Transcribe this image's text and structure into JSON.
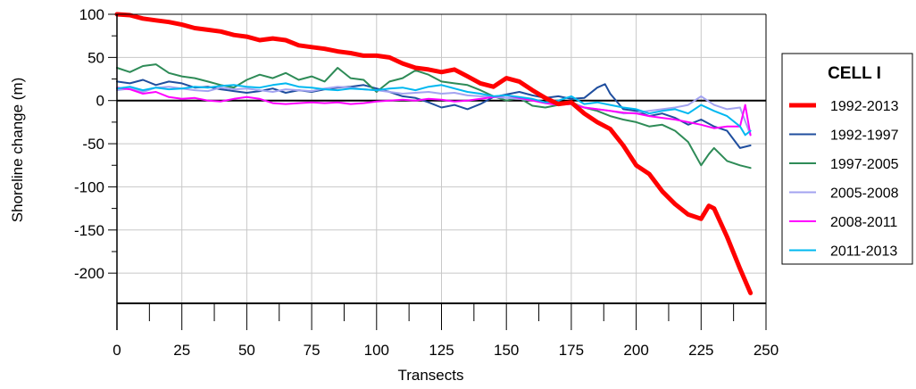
{
  "chart_data": {
    "type": "line",
    "xlabel": "Transects",
    "ylabel": "Shoreline change (m)",
    "xlim": [
      0,
      250
    ],
    "ylim": [
      -235,
      100
    ],
    "xticks": [
      0,
      25,
      50,
      75,
      100,
      125,
      150,
      175,
      200,
      225,
      250
    ],
    "yticks": [
      100,
      50,
      0,
      -50,
      -100,
      -150,
      -200
    ],
    "grid": true,
    "zero_line": true,
    "legend": {
      "title": "CELL I",
      "position": "right"
    },
    "series": [
      {
        "name": "1992-2013",
        "color": "#ff0000",
        "x": [
          0,
          5,
          10,
          15,
          20,
          25,
          30,
          35,
          40,
          45,
          50,
          55,
          60,
          65,
          70,
          75,
          80,
          85,
          90,
          95,
          100,
          105,
          110,
          115,
          120,
          125,
          130,
          135,
          140,
          145,
          150,
          155,
          160,
          165,
          170,
          175,
          180,
          185,
          190,
          195,
          200,
          205,
          210,
          215,
          220,
          225,
          228,
          230,
          235,
          240,
          244
        ],
        "values": [
          100,
          99,
          95,
          93,
          91,
          88,
          84,
          82,
          80,
          76,
          74,
          70,
          72,
          70,
          64,
          62,
          60,
          57,
          55,
          52,
          52,
          50,
          43,
          38,
          36,
          33,
          36,
          28,
          20,
          16,
          26,
          22,
          12,
          3,
          -4,
          -2,
          -15,
          -25,
          -33,
          -52,
          -75,
          -85,
          -105,
          -120,
          -132,
          -137,
          -122,
          -125,
          -158,
          -195,
          -223
        ]
      },
      {
        "name": "1992-1997",
        "color": "#1f4e9e",
        "x": [
          0,
          5,
          10,
          15,
          20,
          25,
          30,
          35,
          40,
          45,
          50,
          55,
          60,
          65,
          70,
          75,
          80,
          85,
          90,
          95,
          100,
          105,
          110,
          115,
          120,
          125,
          130,
          135,
          140,
          145,
          150,
          155,
          160,
          165,
          170,
          175,
          180,
          185,
          188,
          190,
          195,
          200,
          205,
          210,
          215,
          220,
          225,
          230,
          235,
          240,
          244
        ],
        "values": [
          22,
          20,
          24,
          18,
          22,
          20,
          15,
          16,
          13,
          11,
          9,
          11,
          14,
          9,
          12,
          10,
          13,
          15,
          16,
          18,
          14,
          10,
          5,
          3,
          -2,
          -8,
          -5,
          -10,
          -4,
          4,
          7,
          10,
          6,
          3,
          5,
          2,
          3,
          15,
          19,
          8,
          -10,
          -12,
          -18,
          -15,
          -20,
          -28,
          -22,
          -30,
          -35,
          -55,
          -52
        ]
      },
      {
        "name": "1997-2005",
        "color": "#2e8b57",
        "x": [
          0,
          5,
          10,
          15,
          20,
          25,
          30,
          35,
          40,
          45,
          50,
          55,
          60,
          65,
          70,
          75,
          80,
          85,
          90,
          95,
          100,
          105,
          110,
          115,
          120,
          125,
          130,
          135,
          140,
          145,
          150,
          155,
          160,
          165,
          170,
          175,
          180,
          185,
          190,
          195,
          200,
          205,
          210,
          215,
          220,
          225,
          228,
          230,
          235,
          240,
          244
        ],
        "values": [
          38,
          33,
          40,
          42,
          32,
          28,
          26,
          22,
          18,
          15,
          24,
          30,
          26,
          32,
          24,
          28,
          22,
          38,
          26,
          24,
          10,
          22,
          26,
          35,
          30,
          22,
          20,
          18,
          12,
          5,
          0,
          3,
          -6,
          -8,
          -5,
          -2,
          -8,
          -12,
          -18,
          -22,
          -25,
          -30,
          -28,
          -35,
          -48,
          -75,
          -62,
          -55,
          -70,
          -75,
          -78
        ]
      },
      {
        "name": "2005-2008",
        "color": "#a3a3f0",
        "x": [
          0,
          5,
          10,
          15,
          20,
          25,
          30,
          35,
          40,
          45,
          50,
          55,
          60,
          65,
          70,
          75,
          80,
          85,
          90,
          95,
          100,
          105,
          110,
          115,
          120,
          125,
          130,
          135,
          140,
          145,
          150,
          155,
          160,
          165,
          170,
          175,
          180,
          185,
          190,
          195,
          200,
          205,
          210,
          215,
          220,
          225,
          230,
          235,
          240,
          244
        ],
        "values": [
          12,
          14,
          10,
          15,
          16,
          14,
          12,
          11,
          15,
          13,
          14,
          12,
          10,
          13,
          12,
          11,
          14,
          16,
          15,
          13,
          12,
          10,
          8,
          9,
          10,
          8,
          9,
          6,
          5,
          4,
          3,
          2,
          0,
          -2,
          -5,
          -3,
          -8,
          -10,
          -12,
          -15,
          -14,
          -12,
          -10,
          -8,
          -5,
          5,
          -5,
          -10,
          -8,
          -40
        ]
      },
      {
        "name": "2008-2011",
        "color": "#ff00ff",
        "x": [
          0,
          5,
          10,
          15,
          20,
          25,
          30,
          35,
          40,
          45,
          50,
          55,
          60,
          65,
          70,
          75,
          80,
          85,
          90,
          95,
          100,
          105,
          110,
          115,
          120,
          125,
          130,
          135,
          140,
          145,
          150,
          155,
          160,
          165,
          170,
          175,
          180,
          185,
          190,
          195,
          200,
          205,
          210,
          215,
          220,
          225,
          230,
          235,
          240,
          242,
          244
        ],
        "values": [
          15,
          13,
          8,
          10,
          4,
          2,
          3,
          0,
          -1,
          2,
          4,
          2,
          -3,
          -4,
          -3,
          -2,
          -3,
          -2,
          -4,
          -3,
          -1,
          0,
          1,
          0,
          2,
          1,
          -1,
          0,
          2,
          4,
          6,
          3,
          0,
          -3,
          -5,
          -4,
          -8,
          -10,
          -12,
          -14,
          -15,
          -18,
          -20,
          -22,
          -25,
          -28,
          -32,
          -30,
          -30,
          -5,
          -40
        ]
      },
      {
        "name": "2011-2013",
        "color": "#00b8f0",
        "x": [
          0,
          5,
          10,
          15,
          20,
          25,
          30,
          35,
          40,
          45,
          50,
          55,
          60,
          65,
          70,
          75,
          80,
          85,
          90,
          95,
          100,
          105,
          110,
          115,
          120,
          125,
          130,
          135,
          140,
          145,
          150,
          155,
          160,
          165,
          170,
          175,
          180,
          185,
          190,
          195,
          200,
          205,
          210,
          215,
          220,
          225,
          230,
          235,
          240,
          242,
          244
        ],
        "values": [
          14,
          16,
          12,
          15,
          13,
          14,
          16,
          15,
          17,
          18,
          16,
          15,
          18,
          20,
          16,
          15,
          13,
          12,
          14,
          13,
          12,
          14,
          15,
          12,
          16,
          18,
          14,
          10,
          8,
          5,
          6,
          4,
          2,
          -2,
          0,
          5,
          -4,
          -2,
          -5,
          -8,
          -10,
          -15,
          -12,
          -10,
          -15,
          -5,
          -12,
          -18,
          -30,
          -40,
          -35
        ]
      }
    ]
  }
}
